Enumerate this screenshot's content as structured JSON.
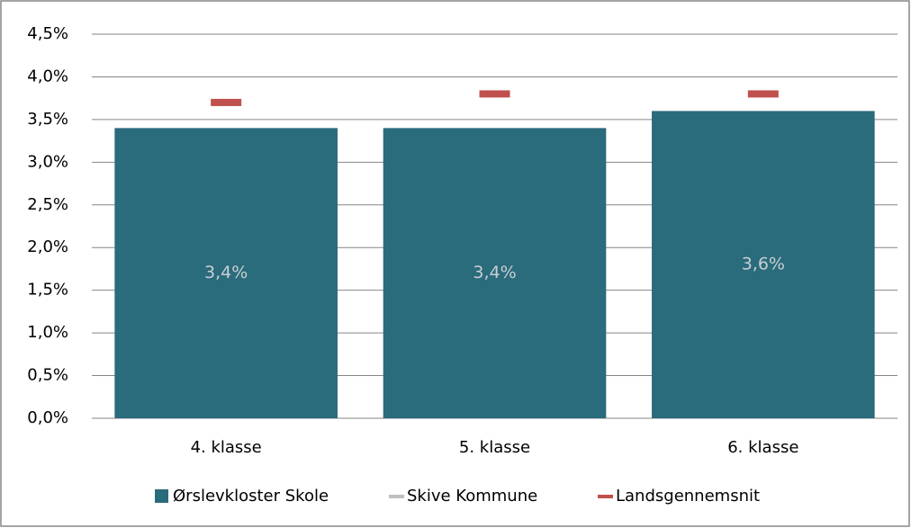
{
  "chart_data": {
    "type": "bar",
    "categories": [
      "4. klasse",
      "5. klasse",
      "6. klasse"
    ],
    "series": [
      {
        "name": "Ørslevkloster Skole",
        "color": "#2a6b7c",
        "kind": "bar",
        "values": [
          3.4,
          3.4,
          3.6
        ],
        "value_labels": [
          "3,4%",
          "3,4%",
          "3,6%"
        ]
      },
      {
        "name": "Skive Kommune",
        "color": "#bfbfbf",
        "kind": "marker",
        "values": [
          null,
          null,
          null
        ]
      },
      {
        "name": "Landsgennemsnit",
        "color": "#c0504d",
        "kind": "marker",
        "values": [
          3.7,
          3.8,
          3.8
        ]
      }
    ],
    "ylim": [
      0,
      4.5
    ],
    "yticks": [
      {
        "value": 0,
        "label": "0,0%"
      },
      {
        "value": 0.5,
        "label": "0,5%"
      },
      {
        "value": 1,
        "label": "1,0%"
      },
      {
        "value": 1.5,
        "label": "1,5%"
      },
      {
        "value": 2,
        "label": "2,0%"
      },
      {
        "value": 2.5,
        "label": "2,5%"
      },
      {
        "value": 3,
        "label": "3,0%"
      },
      {
        "value": 3.5,
        "label": "3,5%"
      },
      {
        "value": 4,
        "label": "4,0%"
      },
      {
        "value": 4.5,
        "label": "4,5%"
      }
    ],
    "grid": true,
    "legend": "bottom"
  }
}
